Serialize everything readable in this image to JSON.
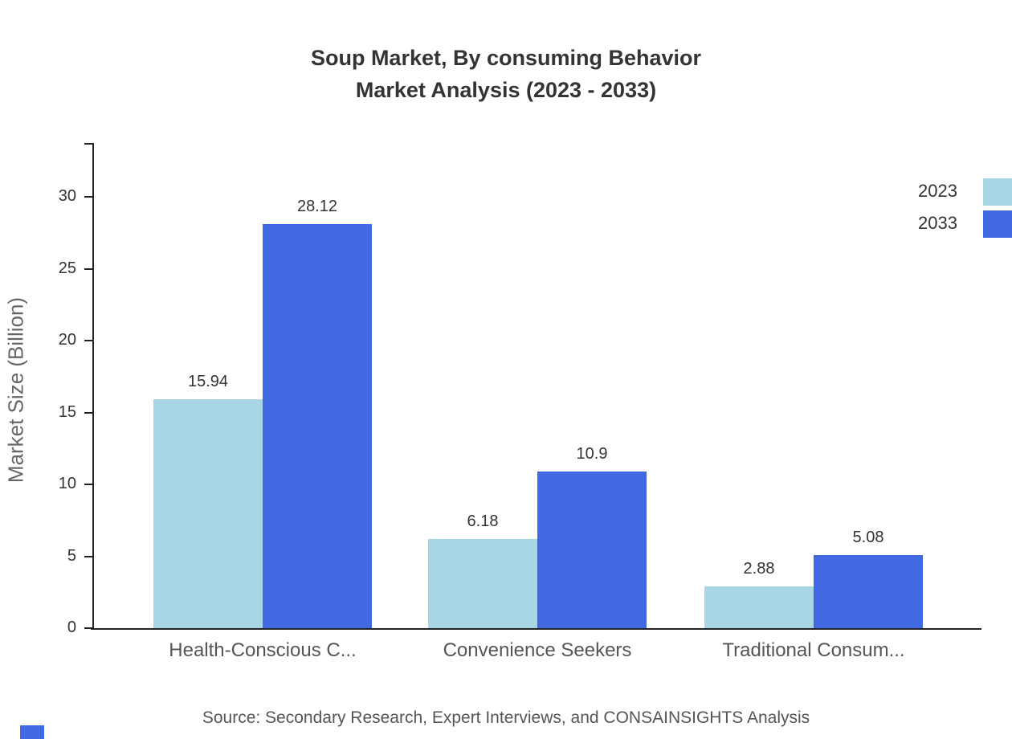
{
  "chart_data": {
    "type": "bar",
    "title": "Soup Market, By consuming Behavior",
    "subtitle": "Market Analysis (2023 - 2033)",
    "ylabel": "Market Size (Billion)",
    "categories": [
      "Health-Conscious C...",
      "Convenience Seekers",
      "Traditional Consum..."
    ],
    "series": [
      {
        "name": "2023",
        "color": "#A9D6E5",
        "values": [
          15.94,
          6.18,
          2.88
        ]
      },
      {
        "name": "2033",
        "color": "#4169E1",
        "values": [
          28.12,
          10.9,
          5.08
        ]
      }
    ],
    "yticks": [
      0,
      5,
      10,
      15,
      20,
      25,
      30
    ],
    "ylim": [
      0,
      33.5
    ],
    "grid": false,
    "legend_position": "top-right",
    "source": "Source: Secondary Research, Expert Interviews, and CONSAINSIGHTS Analysis"
  },
  "accent_color": "#4169E1"
}
